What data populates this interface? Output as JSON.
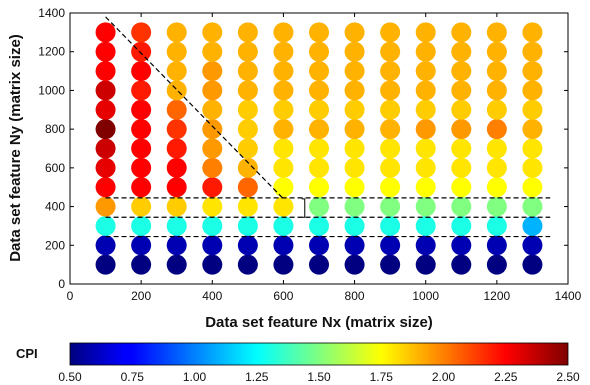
{
  "chart_data": {
    "type": "scatter",
    "xlabel": "Data set feature Nx (matrix size)",
    "ylabel": "Data set feature Ny (matrix size)",
    "xlim": [
      0,
      1400
    ],
    "ylim": [
      0,
      1400
    ],
    "x_ticks": [
      0,
      200,
      400,
      600,
      800,
      1000,
      1200,
      1400
    ],
    "y_ticks": [
      0,
      200,
      400,
      600,
      800,
      1000,
      1200,
      1400
    ],
    "x": [
      100,
      200,
      300,
      400,
      500,
      600,
      700,
      800,
      900,
      1000,
      1100,
      1200,
      1300
    ],
    "y": [
      100,
      200,
      300,
      400,
      500,
      600,
      700,
      800,
      900,
      1000,
      1100,
      1200,
      1300
    ],
    "cpi_note": "cpi[row][col]: rows follow y ascending (100..1300), cols follow x ascending (100..1300)",
    "cpi": [
      [
        0.5,
        0.5,
        0.5,
        0.5,
        0.5,
        0.5,
        0.5,
        0.5,
        0.5,
        0.5,
        0.5,
        0.5,
        0.5
      ],
      [
        0.6,
        0.6,
        0.6,
        0.6,
        0.6,
        0.6,
        0.6,
        0.6,
        0.6,
        0.6,
        0.6,
        0.6,
        0.6
      ],
      [
        1.3,
        1.3,
        1.3,
        1.3,
        1.3,
        1.3,
        1.3,
        1.3,
        1.3,
        1.3,
        1.3,
        1.3,
        1.1
      ],
      [
        1.95,
        1.85,
        1.85,
        1.8,
        1.8,
        1.8,
        1.5,
        1.5,
        1.5,
        1.5,
        1.5,
        1.5,
        1.5
      ],
      [
        2.25,
        2.25,
        2.25,
        2.2,
        2.05,
        1.75,
        1.75,
        1.75,
        1.75,
        1.75,
        1.75,
        1.75,
        1.75
      ],
      [
        2.3,
        2.25,
        2.25,
        2.0,
        1.9,
        1.8,
        1.8,
        1.8,
        1.8,
        1.8,
        1.8,
        1.8,
        1.8
      ],
      [
        2.35,
        2.25,
        2.2,
        1.95,
        1.85,
        1.8,
        1.8,
        1.8,
        1.8,
        1.8,
        1.8,
        1.8,
        1.8
      ],
      [
        2.5,
        2.25,
        2.15,
        1.95,
        1.85,
        1.9,
        1.9,
        1.9,
        1.9,
        1.95,
        1.95,
        2.0,
        1.9
      ],
      [
        2.3,
        2.25,
        2.05,
        1.9,
        1.85,
        1.85,
        1.85,
        1.85,
        1.85,
        1.85,
        1.85,
        1.85,
        1.85
      ],
      [
        2.35,
        2.2,
        1.9,
        1.95,
        1.9,
        1.9,
        1.9,
        1.9,
        1.9,
        1.9,
        1.9,
        1.9,
        1.9
      ],
      [
        2.25,
        2.25,
        1.9,
        1.95,
        1.9,
        1.9,
        1.9,
        1.9,
        1.9,
        1.9,
        1.9,
        1.9,
        1.9
      ],
      [
        2.25,
        2.2,
        1.9,
        1.9,
        1.9,
        1.9,
        1.9,
        1.9,
        1.9,
        1.9,
        1.9,
        1.9,
        1.9
      ],
      [
        2.25,
        2.15,
        1.9,
        1.9,
        1.9,
        1.9,
        1.9,
        1.9,
        1.9,
        1.9,
        1.9,
        1.9,
        1.9
      ]
    ],
    "annotations": {
      "diagonal_line": [
        [
          100,
          1380
        ],
        [
          600,
          440
        ]
      ],
      "horizontal_lines": [
        {
          "y": 445,
          "x_from": 100,
          "x_to": 1350
        },
        {
          "y": 345,
          "x_from": 100,
          "x_to": 1350
        },
        {
          "y": 245,
          "x_from": 100,
          "x_to": 1350
        }
      ],
      "bracket": {
        "x": 660,
        "y_from": 345,
        "y_to": 440
      }
    },
    "colorbar": {
      "label": "CPI",
      "min": 0.5,
      "max": 2.5,
      "ticks": [
        "0.50",
        "0.75",
        "1.00",
        "1.25",
        "1.50",
        "1.75",
        "2.00",
        "2.25",
        "2.50"
      ],
      "colormap": "jet"
    },
    "grid": false,
    "legend": "none"
  }
}
